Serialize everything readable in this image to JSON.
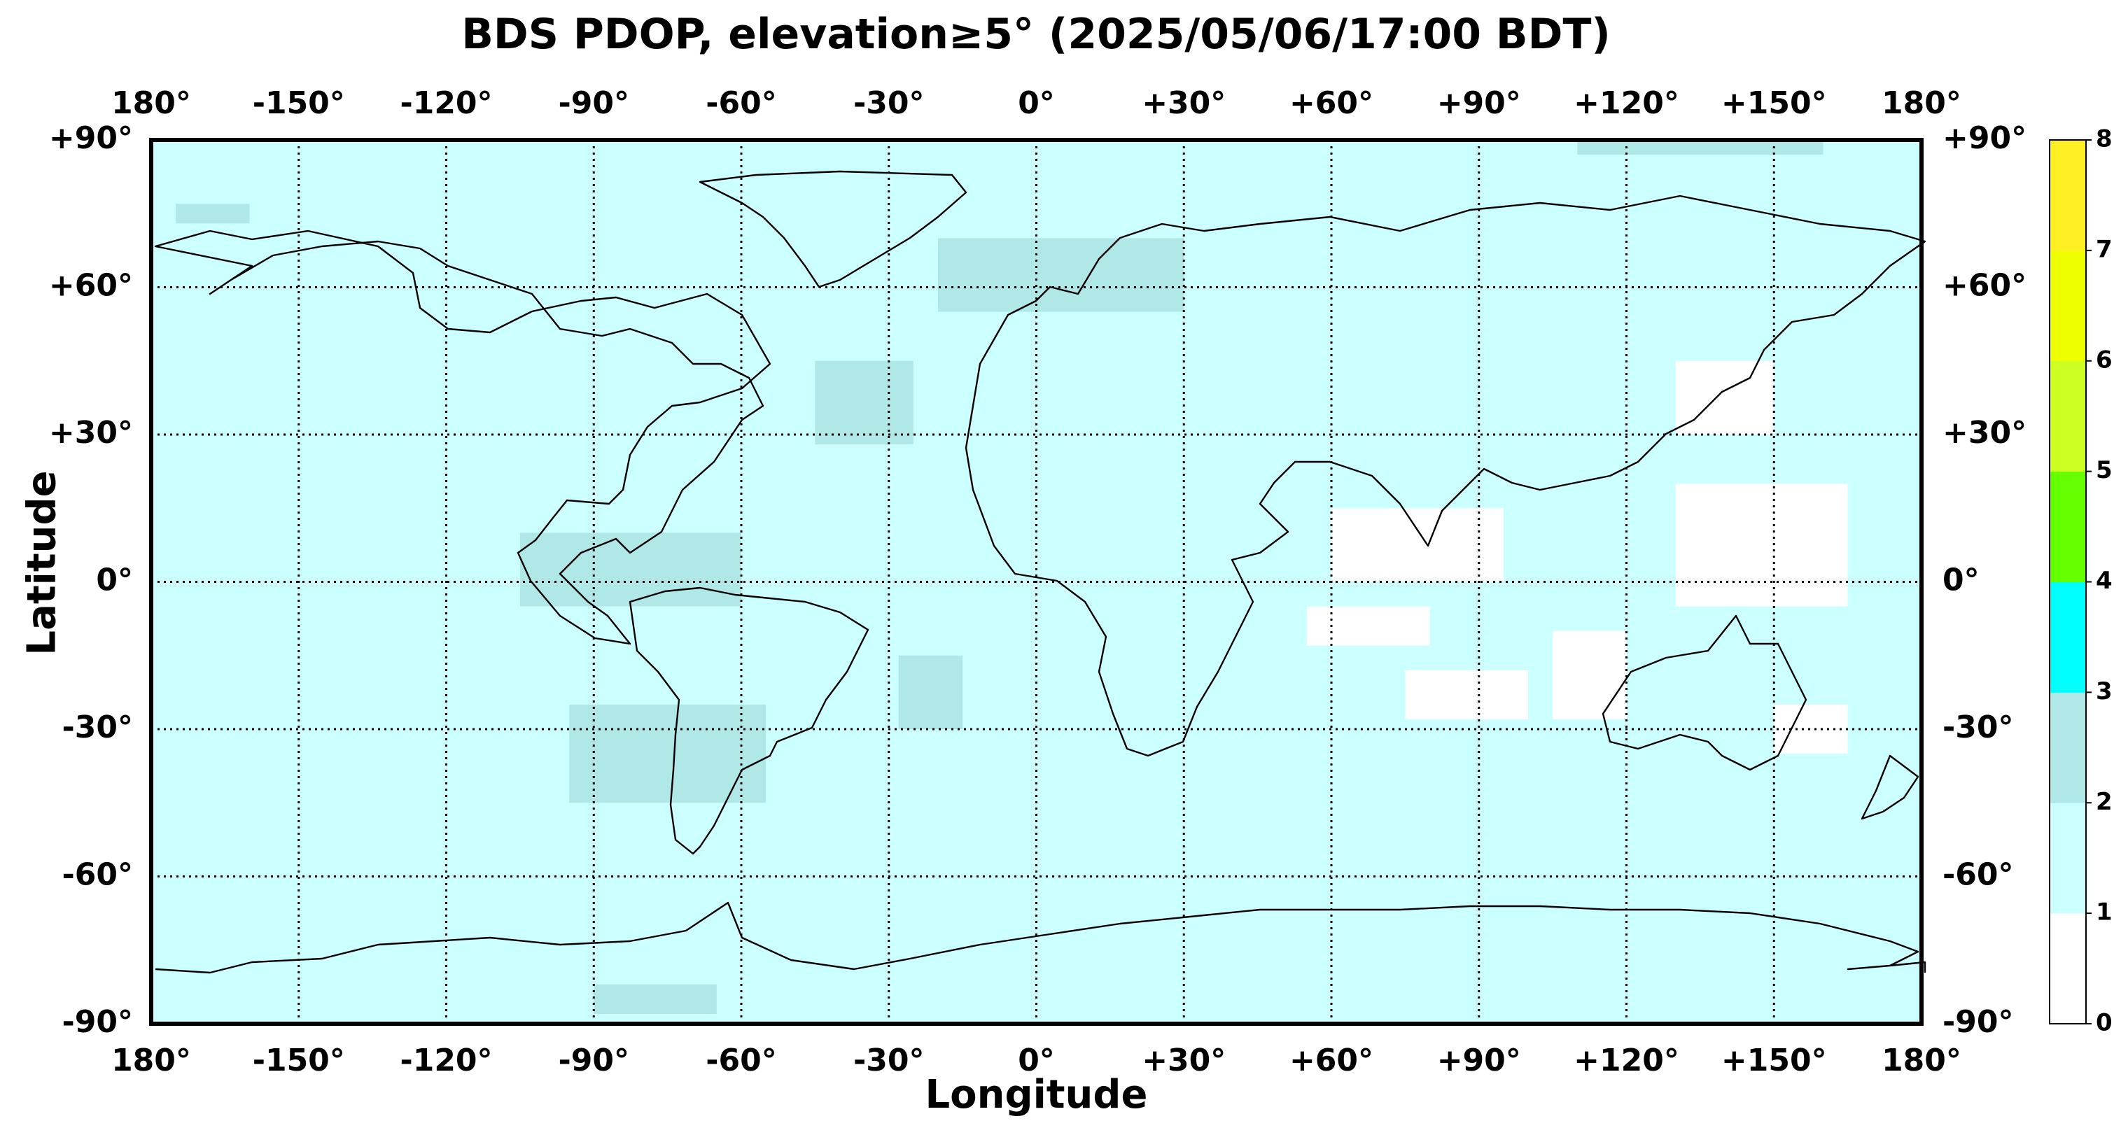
{
  "chart_data": {
    "type": "heatmap",
    "title": "BDS PDOP, elevation≥5° (2025/05/06/17:00 BDT)",
    "xlabel": "Longitude",
    "ylabel": "Latitude",
    "x_ticks": [
      "180°",
      "-150°",
      "-120°",
      "-90°",
      "-60°",
      "-30°",
      "0°",
      "+30°",
      "+60°",
      "+90°",
      "+120°",
      "+150°",
      "180°"
    ],
    "y_ticks": [
      "+90°",
      "+60°",
      "+30°",
      "0°",
      "-30°",
      "-60°",
      "-90°"
    ],
    "xlim": [
      -180,
      180
    ],
    "ylim": [
      -90,
      90
    ],
    "grid": true,
    "colorbar": {
      "ticks": [
        "0",
        "1",
        "2",
        "3",
        "4",
        "5",
        "6",
        "7",
        "8"
      ],
      "bins": [
        {
          "range": [
            0,
            1
          ],
          "color": "#ffffff"
        },
        {
          "range": [
            1,
            2
          ],
          "color": "#ccffff"
        },
        {
          "range": [
            2,
            3
          ],
          "color": "#b0e8e8"
        },
        {
          "range": [
            3,
            4
          ],
          "color": "#00ffff"
        },
        {
          "range": [
            4,
            5
          ],
          "color": "#66ff00"
        },
        {
          "range": [
            5,
            6
          ],
          "color": "#ccff22"
        },
        {
          "range": [
            6,
            7
          ],
          "color": "#eeff00"
        },
        {
          "range": [
            7,
            8
          ],
          "color": "#ffee22"
        }
      ]
    },
    "background_value_range": [
      1,
      2
    ],
    "regions": [
      {
        "value_range": [
          2,
          3
        ],
        "lon": [
          -105,
          -60
        ],
        "lat": [
          10,
          -5
        ]
      },
      {
        "value_range": [
          2,
          3
        ],
        "lon": [
          -95,
          -55
        ],
        "lat": [
          -25,
          -45
        ]
      },
      {
        "value_range": [
          2,
          3
        ],
        "lon": [
          -45,
          -25
        ],
        "lat": [
          45,
          28
        ]
      },
      {
        "value_range": [
          2,
          3
        ],
        "lon": [
          -28,
          -15
        ],
        "lat": [
          -15,
          -30
        ]
      },
      {
        "value_range": [
          2,
          3
        ],
        "lon": [
          -20,
          30
        ],
        "lat": [
          70,
          55
        ]
      },
      {
        "value_range": [
          2,
          3
        ],
        "lon": [
          -175,
          -160
        ],
        "lat": [
          77,
          73
        ]
      },
      {
        "value_range": [
          2,
          3
        ],
        "lon": [
          -90,
          -65
        ],
        "lat": [
          -82,
          -88
        ]
      },
      {
        "value_range": [
          2,
          3
        ],
        "lon": [
          110,
          160
        ],
        "lat": [
          90,
          87
        ]
      },
      {
        "value_range": [
          0,
          1
        ],
        "lon": [
          60,
          95
        ],
        "lat": [
          15,
          0
        ]
      },
      {
        "value_range": [
          0,
          1
        ],
        "lon": [
          55,
          80
        ],
        "lat": [
          -5,
          -13
        ]
      },
      {
        "value_range": [
          0,
          1
        ],
        "lon": [
          75,
          100
        ],
        "lat": [
          -18,
          -28
        ]
      },
      {
        "value_range": [
          0,
          1
        ],
        "lon": [
          130,
          165
        ],
        "lat": [
          20,
          -5
        ]
      },
      {
        "value_range": [
          0,
          1
        ],
        "lon": [
          105,
          120
        ],
        "lat": [
          -10,
          -28
        ]
      },
      {
        "value_range": [
          0,
          1
        ],
        "lon": [
          150,
          165
        ],
        "lat": [
          -25,
          -35
        ]
      },
      {
        "value_range": [
          0,
          1
        ],
        "lon": [
          130,
          150
        ],
        "lat": [
          45,
          30
        ]
      }
    ]
  }
}
